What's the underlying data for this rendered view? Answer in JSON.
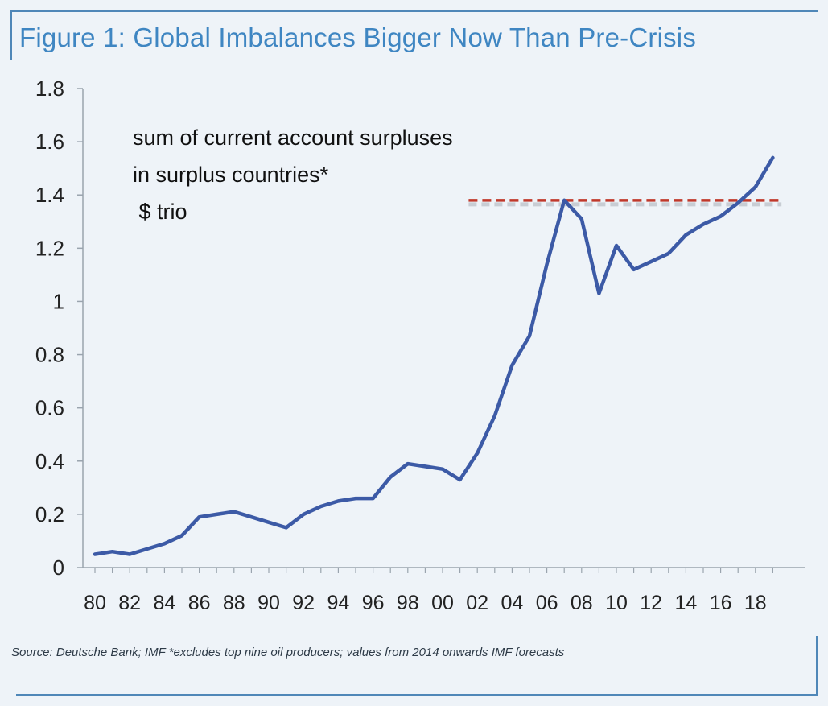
{
  "header": {
    "title": "Figure 1: Global Imbalances Bigger Now Than Pre-Crisis"
  },
  "annotation": {
    "line1": "sum of current account surpluses",
    "line2": "in surplus countries*",
    "line3": " $ trio"
  },
  "footer": {
    "source": "Source: Deutsche Bank; IMF *excludes top nine oil producers; values from 2014 onwards IMF forecasts"
  },
  "colors": {
    "series": "#3c5aa6",
    "reference_line": "#c0392b",
    "title": "#3f86c2",
    "frame": "#4f87b8",
    "background": "#eef3f8"
  },
  "chart_data": {
    "type": "line",
    "title": "Figure 1: Global Imbalances Bigger Now Than Pre-Crisis",
    "xlabel": "",
    "ylabel": "",
    "x": [
      1980,
      1981,
      1982,
      1983,
      1984,
      1985,
      1986,
      1987,
      1988,
      1989,
      1990,
      1991,
      1992,
      1993,
      1994,
      1995,
      1996,
      1997,
      1998,
      1999,
      2000,
      2001,
      2002,
      2003,
      2004,
      2005,
      2006,
      2007,
      2008,
      2009,
      2010,
      2011,
      2012,
      2013,
      2014,
      2015,
      2016,
      2017,
      2018,
      2019
    ],
    "series": [
      {
        "values": [
          0.05,
          0.06,
          0.05,
          0.07,
          0.09,
          0.12,
          0.19,
          0.2,
          0.21,
          0.19,
          0.17,
          0.15,
          0.2,
          0.23,
          0.25,
          0.26,
          0.26,
          0.34,
          0.39,
          0.38,
          0.37,
          0.33,
          0.43,
          0.57,
          0.76,
          0.87,
          1.14,
          1.38,
          1.31,
          1.03,
          1.21,
          1.12,
          1.15,
          1.18,
          1.25,
          1.29,
          1.32,
          1.37,
          1.43,
          1.54
        ]
      }
    ],
    "reference_line": {
      "y": 1.38,
      "x_start": 2001.5,
      "x_end": 2019.5,
      "style": "dashed"
    },
    "ylim": [
      0,
      1.8
    ],
    "xlim": [
      1979.5,
      2019.7
    ],
    "yticks": [
      0,
      0.2,
      0.4,
      0.6,
      0.8,
      1,
      1.2,
      1.4,
      1.6,
      1.8
    ],
    "ytick_labels": [
      "0",
      "0.2",
      "0.4",
      "0.6",
      "0.8",
      "1",
      "1.2",
      "1.4",
      "1.6",
      "1.8"
    ],
    "xtick_years": [
      1980,
      1982,
      1984,
      1986,
      1988,
      1990,
      1992,
      1994,
      1996,
      1998,
      2000,
      2002,
      2004,
      2006,
      2008,
      2010,
      2012,
      2014,
      2016,
      2018
    ],
    "xtick_labels": [
      "80",
      "82",
      "84",
      "86",
      "88",
      "90",
      "92",
      "94",
      "96",
      "98",
      "00",
      "02",
      "04",
      "06",
      "08",
      "10",
      "12",
      "14",
      "16",
      "18"
    ],
    "grid": false,
    "legend": "none"
  }
}
